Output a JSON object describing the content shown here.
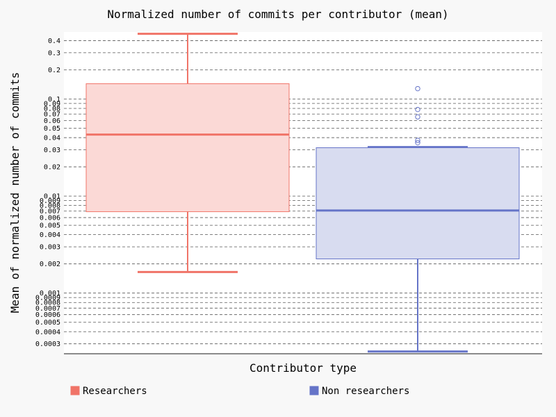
{
  "chart_data": {
    "type": "box",
    "title": "Normalized number of commits per contributor (mean)",
    "xlabel": "Contributor type",
    "ylabel": "Mean of normalized number of commits",
    "y_scale": "log",
    "ylim": [
      0.00025,
      0.5
    ],
    "grid": "horizontal dashed",
    "legend_position": "bottom",
    "y_ticks": [
      {
        "value": 0.0003,
        "label": "0.0003"
      },
      {
        "value": 0.0004,
        "label": "0.0004"
      },
      {
        "value": 0.0005,
        "label": "0.0005"
      },
      {
        "value": 0.0006,
        "label": "0.0006"
      },
      {
        "value": 0.0007,
        "label": "0.0007"
      },
      {
        "value": 0.0008,
        "label": "0.0008"
      },
      {
        "value": 0.0009,
        "label": "0.0009"
      },
      {
        "value": 0.001,
        "label": "0.001"
      },
      {
        "value": 0.002,
        "label": "0.002"
      },
      {
        "value": 0.003,
        "label": "0.003"
      },
      {
        "value": 0.004,
        "label": "0.004"
      },
      {
        "value": 0.005,
        "label": "0.005"
      },
      {
        "value": 0.006,
        "label": "0.006"
      },
      {
        "value": 0.007,
        "label": "0.007"
      },
      {
        "value": 0.008,
        "label": "0.008"
      },
      {
        "value": 0.009,
        "label": "0.009"
      },
      {
        "value": 0.01,
        "label": "0.01"
      },
      {
        "value": 0.02,
        "label": "0.02"
      },
      {
        "value": 0.03,
        "label": "0.03"
      },
      {
        "value": 0.04,
        "label": "0.04"
      },
      {
        "value": 0.05,
        "label": "0.05"
      },
      {
        "value": 0.06,
        "label": "0.06"
      },
      {
        "value": 0.07,
        "label": "0.07"
      },
      {
        "value": 0.08,
        "label": "0.08"
      },
      {
        "value": 0.09,
        "label": "0.09"
      },
      {
        "value": 0.1,
        "label": "0.1"
      },
      {
        "value": 0.2,
        "label": "0.2"
      },
      {
        "value": 0.3,
        "label": "0.3"
      },
      {
        "value": 0.4,
        "label": "0.4"
      }
    ],
    "series": [
      {
        "name": "Researchers",
        "color": "#f07468",
        "fill": "#fbd9d6",
        "whisker_low": 0.00165,
        "q1": 0.0069,
        "median": 0.043,
        "q3": 0.144,
        "whisker_high": 0.47,
        "outliers": []
      },
      {
        "name": "Non researchers",
        "color": "#6574c8",
        "fill": "#d8dcf0",
        "whisker_low": 0.00025,
        "q1": 0.00225,
        "median": 0.0071,
        "q3": 0.0315,
        "whisker_high": 0.032,
        "outliers": [
          0.128,
          0.078,
          0.0655,
          0.0375,
          0.0355
        ]
      }
    ]
  }
}
